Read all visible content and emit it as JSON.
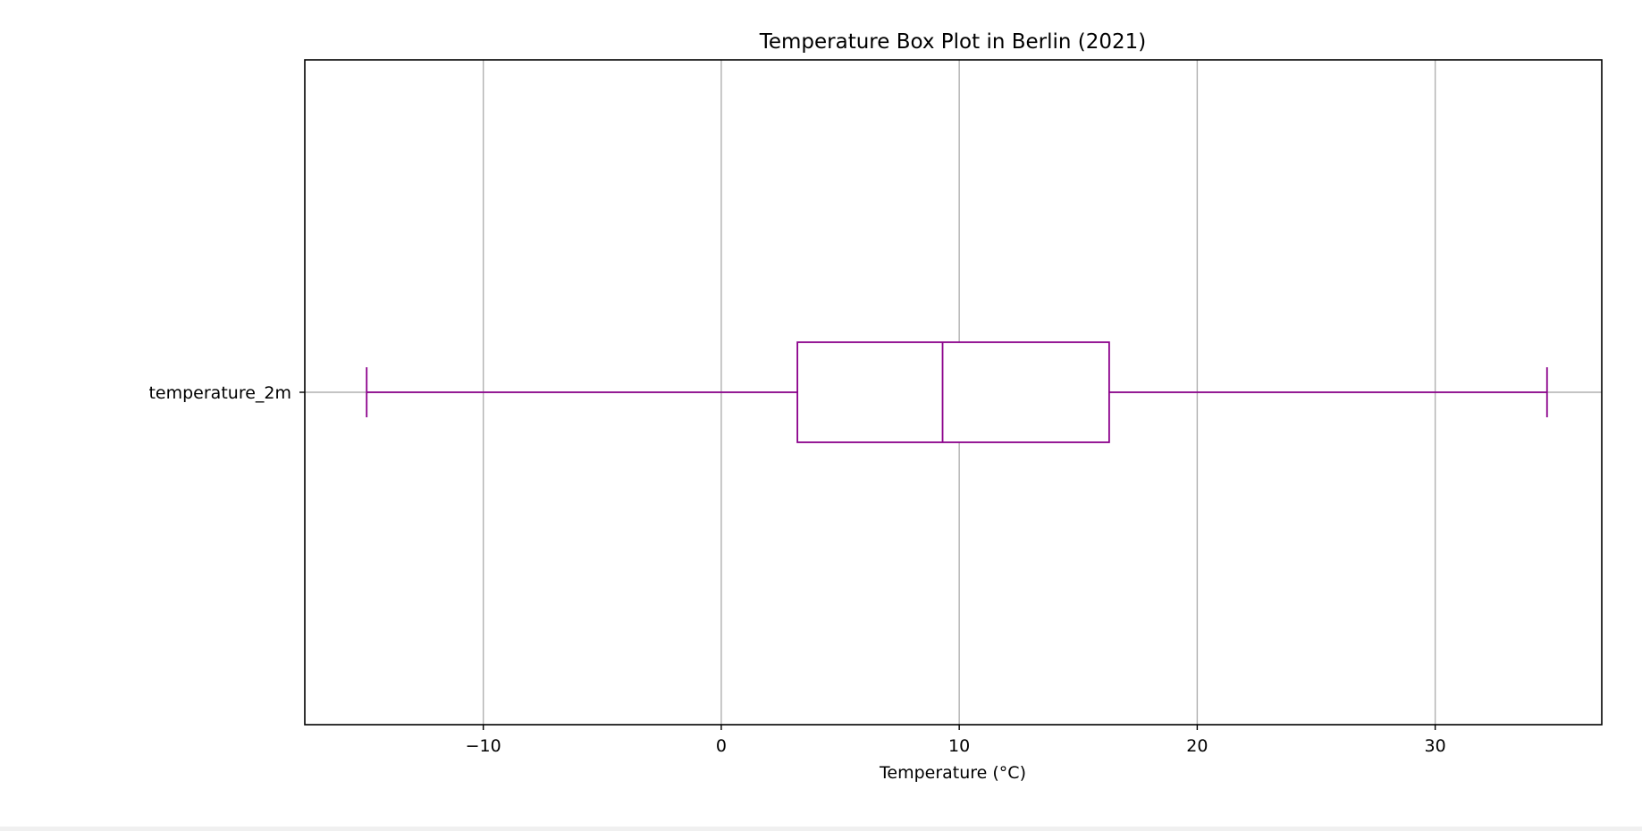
{
  "chart_data": {
    "type": "box",
    "orientation": "horizontal",
    "title": "Temperature Box Plot in Berlin (2021)",
    "xlabel": "Temperature (°C)",
    "ylabel": "",
    "xlim": [
      -17.5,
      37.0
    ],
    "xticks": [
      -10,
      0,
      10,
      20,
      30
    ],
    "xtick_labels": [
      "−10",
      "0",
      "10",
      "20",
      "30"
    ],
    "grid": true,
    "series": [
      {
        "category": "temperature_2m",
        "whisker_low": -14.9,
        "q1": 3.2,
        "median": 9.3,
        "q3": 16.3,
        "whisker_high": 34.7
      }
    ],
    "colors": {
      "box": "#8b008b",
      "grid": "#b0b0b0",
      "axes": "#000000"
    }
  }
}
